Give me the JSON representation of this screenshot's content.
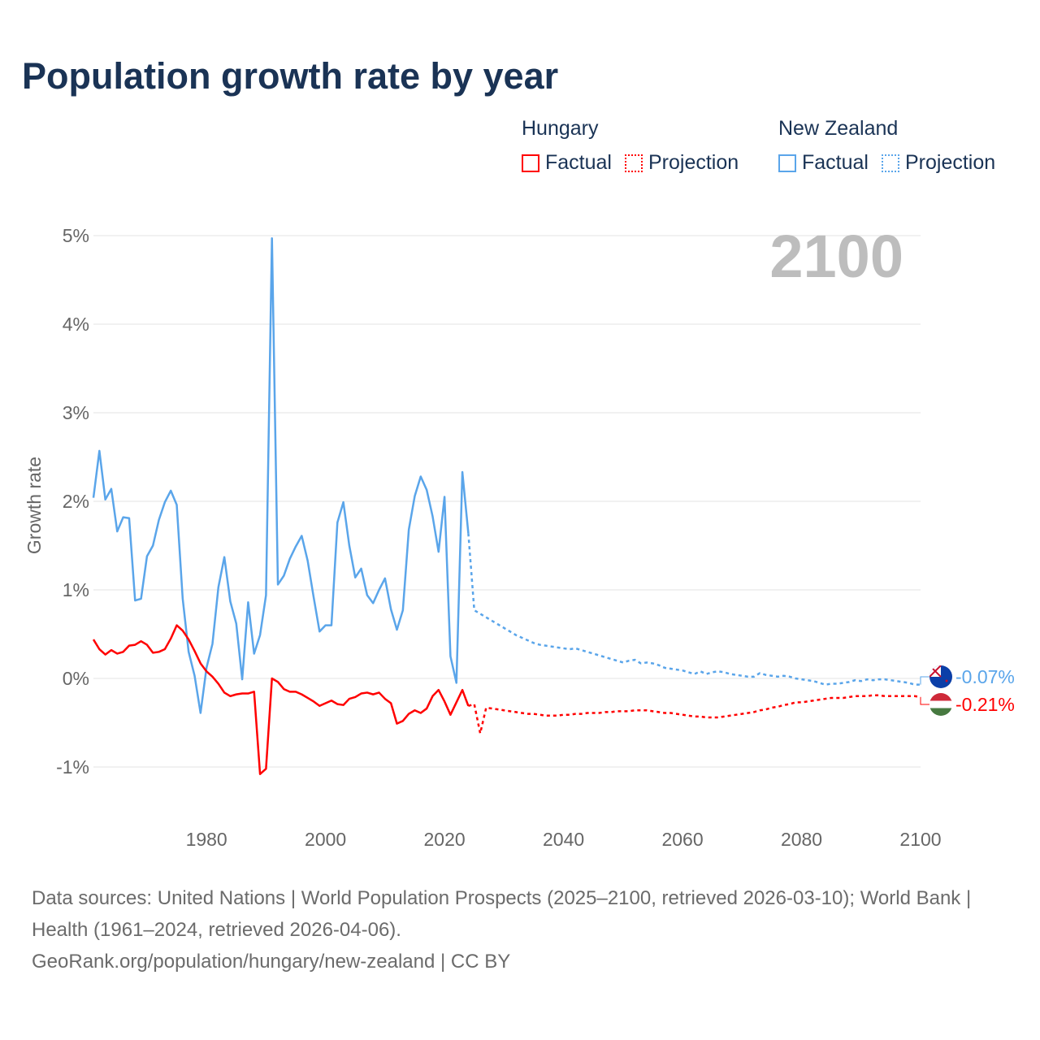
{
  "title": "Population growth rate by year",
  "legend": {
    "groups": [
      {
        "name": "Hungary",
        "color": "#ff0000",
        "factual": "Factual",
        "projection": "Projection"
      },
      {
        "name": "New Zealand",
        "color": "#5aa5ea",
        "factual": "Factual",
        "projection": "Projection"
      }
    ]
  },
  "footer": {
    "sources": "Data sources: United Nations | World Population Prospects (2025–2100, retrieved 2026-03-10); World Bank | Health (1961–2024, retrieved 2026-04-06).",
    "link": "GeoRank.org/population/hungary/new-zealand | CC BY"
  },
  "chart_data": {
    "type": "line",
    "title": "Population growth rate by year",
    "ylabel": "Growth rate",
    "xlabel": "",
    "year_label": "2100",
    "xlim": [
      1961,
      2100
    ],
    "ylim": [
      -1.5,
      5.2
    ],
    "x_ticks": [
      1980,
      2000,
      2020,
      2040,
      2060,
      2080,
      2100
    ],
    "y_ticks": [
      {
        "v": -1,
        "label": "-1%"
      },
      {
        "v": 0,
        "label": "0%"
      },
      {
        "v": 1,
        "label": "1%"
      },
      {
        "v": 2,
        "label": "2%"
      },
      {
        "v": 3,
        "label": "3%"
      },
      {
        "v": 4,
        "label": "4%"
      },
      {
        "v": 5,
        "label": "5%"
      }
    ],
    "grid": true,
    "series": [
      {
        "name": "New Zealand",
        "color": "#5aa5ea",
        "end_label": "-0.07%",
        "factual_start": 1961,
        "factual": [
          2.04,
          2.57,
          2.02,
          2.14,
          1.66,
          1.82,
          1.81,
          0.88,
          0.9,
          1.38,
          1.5,
          1.79,
          1.99,
          2.12,
          1.96,
          0.9,
          0.3,
          0.03,
          -0.39,
          0.12,
          0.39,
          1.03,
          1.37,
          0.87,
          0.62,
          -0.01,
          0.86,
          0.28,
          0.49,
          0.94,
          4.97,
          1.06,
          1.16,
          1.35,
          1.49,
          1.61,
          1.33,
          0.92,
          0.53,
          0.6,
          0.6,
          1.76,
          1.99,
          1.5,
          1.14,
          1.24,
          0.94,
          0.85,
          1.0,
          1.13,
          0.78,
          0.55,
          0.77,
          1.68,
          2.06,
          2.28,
          2.13,
          1.83,
          1.43,
          2.05,
          0.25,
          -0.05,
          2.33,
          1.64
        ],
        "projection_start": 2025,
        "projection": [
          0.77,
          0.73,
          0.69,
          0.65,
          0.61,
          0.57,
          0.53,
          0.49,
          0.46,
          0.43,
          0.4,
          0.38,
          0.37,
          0.36,
          0.35,
          0.34,
          0.33,
          0.34,
          0.32,
          0.3,
          0.28,
          0.26,
          0.24,
          0.22,
          0.2,
          0.18,
          0.2,
          0.21,
          0.17,
          0.18,
          0.17,
          0.15,
          0.12,
          0.11,
          0.1,
          0.09,
          0.07,
          0.05,
          0.08,
          0.05,
          0.07,
          0.08,
          0.07,
          0.05,
          0.04,
          0.03,
          0.02,
          0.02,
          0.06,
          0.04,
          0.03,
          0.02,
          0.03,
          0.02,
          0.0,
          -0.01,
          -0.02,
          -0.03,
          -0.05,
          -0.07,
          -0.06,
          -0.06,
          -0.05,
          -0.04,
          -0.02,
          -0.03,
          -0.01,
          -0.02,
          -0.01,
          -0.01,
          -0.02,
          -0.03,
          -0.04,
          -0.05,
          -0.07,
          -0.07
        ]
      },
      {
        "name": "Hungary",
        "color": "#ff0000",
        "end_label": "-0.21%",
        "factual_start": 1961,
        "factual": [
          0.44,
          0.33,
          0.27,
          0.32,
          0.28,
          0.3,
          0.37,
          0.38,
          0.42,
          0.38,
          0.29,
          0.3,
          0.33,
          0.45,
          0.6,
          0.54,
          0.44,
          0.31,
          0.17,
          0.08,
          0.02,
          -0.06,
          -0.16,
          -0.2,
          -0.18,
          -0.17,
          -0.17,
          -0.15,
          -1.08,
          -1.02,
          0.0,
          -0.04,
          -0.12,
          -0.15,
          -0.15,
          -0.18,
          -0.22,
          -0.26,
          -0.31,
          -0.28,
          -0.25,
          -0.29,
          -0.3,
          -0.23,
          -0.21,
          -0.17,
          -0.16,
          -0.18,
          -0.16,
          -0.23,
          -0.28,
          -0.51,
          -0.48,
          -0.4,
          -0.36,
          -0.39,
          -0.34,
          -0.2,
          -0.13,
          -0.26,
          -0.41,
          -0.27,
          -0.13,
          -0.31
        ],
        "projection_start": 2025,
        "projection": [
          -0.29,
          -0.62,
          -0.33,
          -0.34,
          -0.35,
          -0.36,
          -0.37,
          -0.38,
          -0.39,
          -0.4,
          -0.4,
          -0.41,
          -0.42,
          -0.42,
          -0.42,
          -0.41,
          -0.41,
          -0.4,
          -0.4,
          -0.39,
          -0.39,
          -0.39,
          -0.38,
          -0.38,
          -0.37,
          -0.37,
          -0.37,
          -0.36,
          -0.36,
          -0.36,
          -0.37,
          -0.38,
          -0.39,
          -0.39,
          -0.4,
          -0.41,
          -0.42,
          -0.43,
          -0.43,
          -0.44,
          -0.44,
          -0.44,
          -0.43,
          -0.42,
          -0.41,
          -0.4,
          -0.39,
          -0.38,
          -0.36,
          -0.35,
          -0.33,
          -0.32,
          -0.3,
          -0.29,
          -0.27,
          -0.27,
          -0.26,
          -0.25,
          -0.24,
          -0.23,
          -0.22,
          -0.22,
          -0.22,
          -0.21,
          -0.2,
          -0.2,
          -0.2,
          -0.19,
          -0.19,
          -0.2,
          -0.2,
          -0.2,
          -0.2,
          -0.2,
          -0.2,
          -0.21
        ]
      }
    ]
  }
}
